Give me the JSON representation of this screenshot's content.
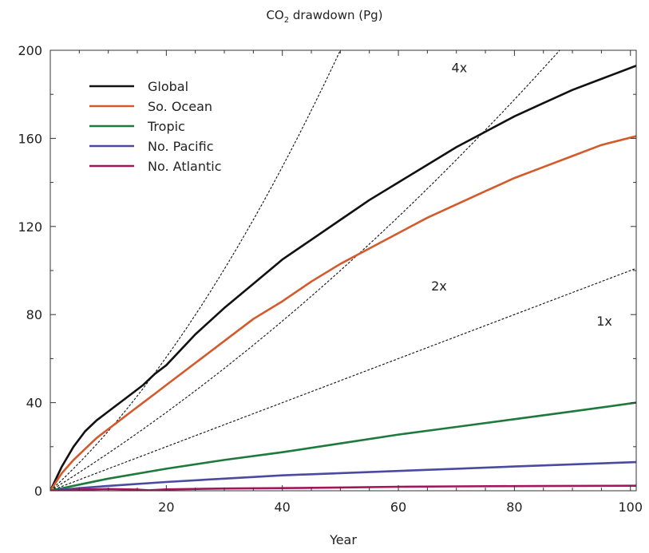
{
  "chart_data": {
    "type": "line",
    "title_main": "CO",
    "title_sub": "2",
    "title_rest": " drawdown (Pg)",
    "xlabel": "Year",
    "ylabel": "",
    "xlim": [
      0,
      101
    ],
    "ylim": [
      0,
      200
    ],
    "xticks": [
      20,
      40,
      60,
      80,
      100
    ],
    "yticks": [
      0,
      40,
      80,
      120,
      160,
      200
    ],
    "grid": false,
    "legend_position": "top-left",
    "series": [
      {
        "name": "Global",
        "color": "#111111",
        "x": [
          0,
          2,
          4,
          6,
          8,
          10,
          12,
          14,
          16,
          18,
          20,
          25,
          30,
          35,
          40,
          45,
          50,
          55,
          60,
          65,
          70,
          75,
          80,
          85,
          90,
          95,
          101
        ],
        "y": [
          0,
          11,
          20,
          27,
          32,
          36,
          40,
          44,
          48,
          53,
          57,
          71,
          83,
          94,
          105,
          114,
          123,
          132,
          140,
          148,
          156,
          163,
          170,
          176,
          182,
          187,
          193
        ]
      },
      {
        "name": "So. Ocean",
        "color": "#d35a2c",
        "x": [
          0,
          2,
          4,
          6,
          8,
          10,
          12,
          14,
          16,
          18,
          20,
          25,
          30,
          35,
          40,
          45,
          50,
          55,
          60,
          65,
          70,
          75,
          80,
          85,
          90,
          95,
          101
        ],
        "y": [
          0,
          8,
          14,
          19,
          24,
          28,
          32,
          36,
          40,
          44,
          48,
          58,
          68,
          78,
          86,
          95,
          103,
          110,
          117,
          124,
          130,
          136,
          142,
          147,
          152,
          157,
          161
        ]
      },
      {
        "name": "Tropic",
        "color": "#1e7a3c",
        "x": [
          0,
          5,
          10,
          20,
          30,
          40,
          50,
          60,
          70,
          80,
          90,
          101
        ],
        "y": [
          0,
          2.8,
          5.5,
          10,
          14,
          17.5,
          21.5,
          25.5,
          29,
          32.5,
          36,
          40
        ]
      },
      {
        "name": "No. Pacific",
        "color": "#4a4aa0",
        "x": [
          0,
          5,
          10,
          20,
          30,
          40,
          50,
          60,
          70,
          80,
          90,
          101
        ],
        "y": [
          0,
          1.2,
          2.2,
          4,
          5.5,
          7,
          8,
          9,
          10,
          11,
          12,
          13
        ]
      },
      {
        "name": "No. Atlantic",
        "color": "#a3165c",
        "x": [
          0,
          5,
          10,
          15,
          17,
          20,
          30,
          40,
          50,
          60,
          70,
          80,
          90,
          101
        ],
        "y": [
          0,
          0.5,
          0.8,
          0.5,
          0.2,
          0.6,
          1,
          1.2,
          1.5,
          1.8,
          2,
          2.1,
          2.2,
          2.3
        ]
      }
    ],
    "reference_lines": [
      {
        "label": "4x",
        "slope": 4,
        "label_x": 70.5,
        "label_y": 190
      },
      {
        "label": "2x",
        "slope": 2,
        "label_x": 67,
        "label_y": 91
      },
      {
        "label": "1x",
        "slope": 1,
        "label_x": 95.5,
        "label_y": 75
      }
    ]
  }
}
